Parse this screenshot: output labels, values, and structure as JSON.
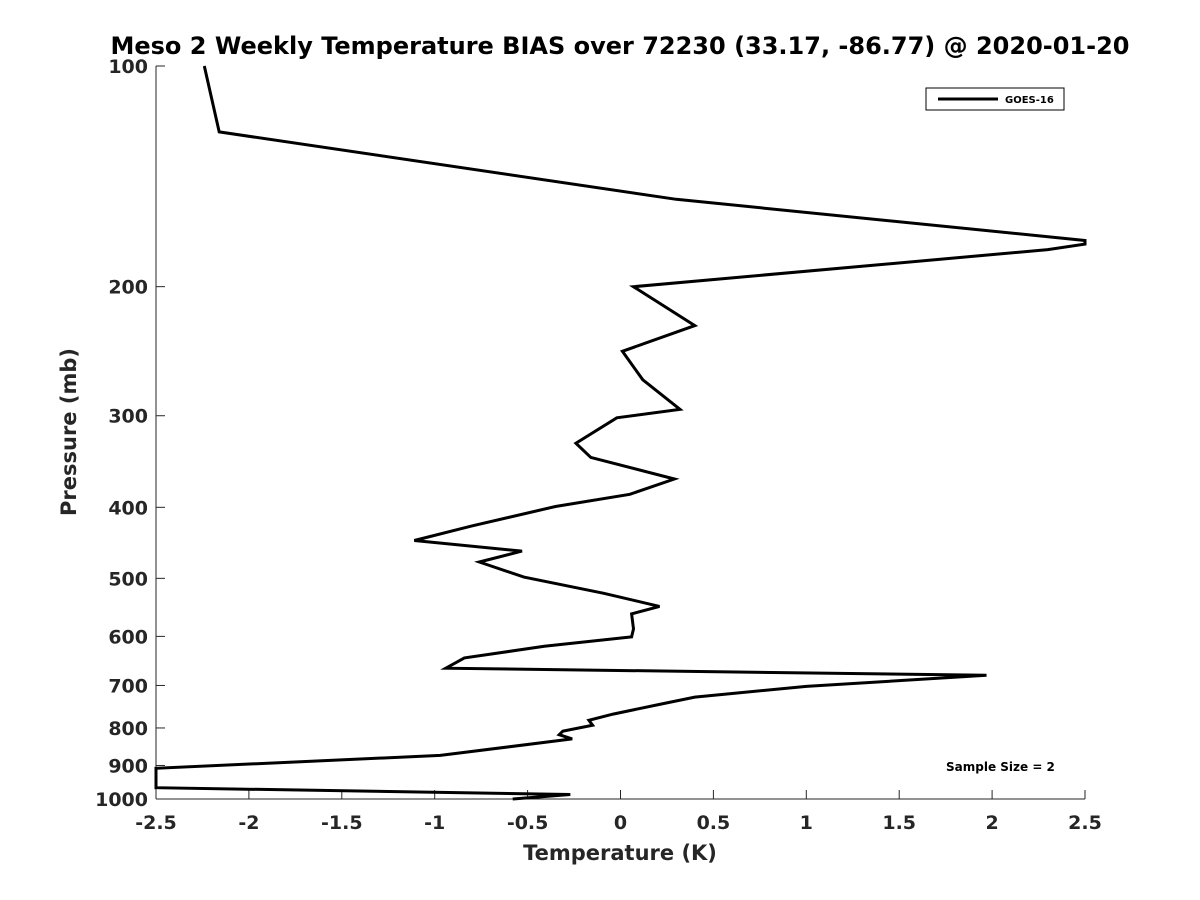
{
  "chart_data": {
    "type": "line",
    "title": "Meso 2 Weekly Temperature BIAS over 72230 (33.17, -86.77) @ 2020-01-20",
    "xlabel": "Temperature (K)",
    "ylabel": "Pressure (mb)",
    "xlim": [
      -2.5,
      2.5
    ],
    "ylim": [
      100,
      1000
    ],
    "y_scale": "log",
    "y_reversed": true,
    "xticks": [
      -2.5,
      -2,
      -1.5,
      -1,
      -0.5,
      0,
      0.5,
      1,
      1.5,
      2,
      2.5
    ],
    "xtick_labels": [
      "-2.5",
      "-2",
      "-1.5",
      "-1",
      "-0.5",
      "0",
      "0.5",
      "1",
      "1.5",
      "2",
      "2.5"
    ],
    "yticks": [
      100,
      200,
      300,
      400,
      500,
      600,
      700,
      800,
      900,
      1000
    ],
    "ytick_labels": [
      "100",
      "200",
      "300",
      "400",
      "500",
      "600",
      "700",
      "800",
      "900",
      "1000"
    ],
    "grid": false,
    "legend_position": "top-right",
    "annotation": "Sample Size = 2",
    "series": [
      {
        "name": "GOES-16",
        "color": "#000000",
        "x": [
          -2.24,
          -2.16,
          0.3,
          2.5,
          2.5,
          2.3,
          0.07,
          0.4,
          0.01,
          0.12,
          0.32,
          -0.02,
          -0.24,
          -0.16,
          0.29,
          0.05,
          -0.35,
          -0.8,
          -1.11,
          -0.53,
          -0.76,
          -0.52,
          -0.09,
          0.21,
          0.06,
          0.07,
          0.06,
          -0.41,
          -0.84,
          -0.94,
          1.97,
          1.0,
          0.4,
          0.22,
          -0.04,
          -0.17,
          -0.15,
          -0.31,
          -0.33,
          -0.26,
          -0.97,
          -2.5,
          -2.5,
          -0.27,
          -0.58
        ],
        "y": [
          100,
          123,
          152,
          173,
          175,
          178,
          200,
          226,
          245,
          268,
          294,
          302,
          327,
          342,
          366,
          384,
          399,
          424,
          444,
          459,
          475,
          498,
          524,
          546,
          559,
          586,
          601,
          619,
          642,
          663,
          678,
          702,
          726,
          742,
          766,
          781,
          793,
          808,
          817,
          828,
          872,
          908,
          965,
          986,
          1000
        ]
      }
    ]
  }
}
